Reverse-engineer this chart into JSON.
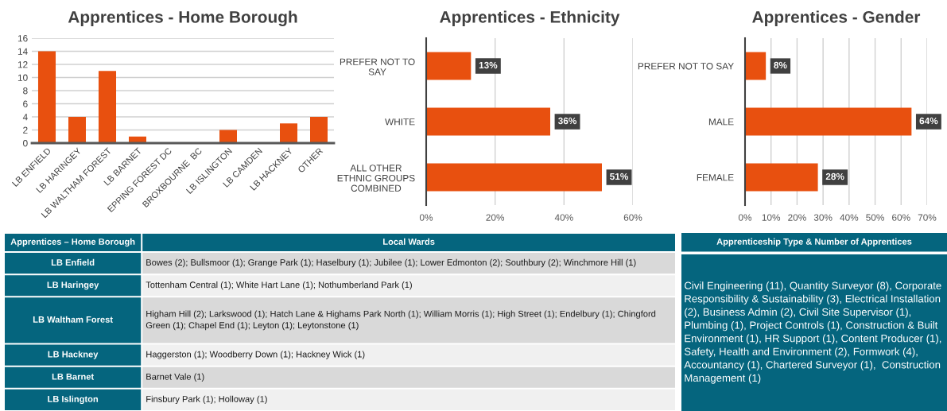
{
  "chart_data": [
    {
      "type": "bar",
      "title": "Apprentices - Home Borough",
      "categories": [
        "LB ENFIELD",
        "LB HARINGEY",
        "LB WALTHAM FOREST",
        "LB BARNET",
        "EPPING FOREST DC",
        "BROXBOURNE  BC",
        "LB ISLINGTON",
        "LB CAMDEN",
        "LB HACKNEY",
        "OTHER"
      ],
      "series": [
        {
          "color": "#e8500f",
          "values": [
            14,
            4,
            11,
            1,
            0,
            0,
            2,
            0,
            3,
            4
          ]
        }
      ],
      "ylim": [
        0,
        16
      ],
      "yticks": [
        0,
        2,
        4,
        6,
        8,
        10,
        12,
        14,
        16
      ],
      "grid": "y"
    },
    {
      "type": "bar",
      "orientation": "horizontal",
      "title": "Apprentices - Ethnicity",
      "categories": [
        "PREFER NOT TO\nSAY",
        "WHITE",
        "ALL OTHER\nETHNIC GROUPS\nCOMBINED"
      ],
      "series": [
        {
          "color": "#e8500f",
          "values": [
            13,
            36,
            51
          ]
        }
      ],
      "value_labels": [
        "13%",
        "36%",
        "51%"
      ],
      "xlim": [
        0,
        60
      ],
      "xticks": [
        {
          "value": 0,
          "label": "0%"
        },
        {
          "value": 20,
          "label": "20%"
        },
        {
          "value": 40,
          "label": "40%"
        },
        {
          "value": 60,
          "label": "60%"
        }
      ],
      "grid": "x"
    },
    {
      "type": "bar",
      "orientation": "horizontal",
      "title": "Apprentices - Gender",
      "categories": [
        "PREFER NOT TO SAY",
        "MALE",
        "FEMALE"
      ],
      "series": [
        {
          "color": "#e8500f",
          "values": [
            8,
            64,
            28
          ]
        }
      ],
      "value_labels": [
        "8%",
        "64%",
        "28%"
      ],
      "xlim": [
        0,
        70
      ],
      "xticks": [
        {
          "value": 0,
          "label": "0%"
        },
        {
          "value": 10,
          "label": "10%"
        },
        {
          "value": 20,
          "label": "20%"
        },
        {
          "value": 30,
          "label": "30%"
        },
        {
          "value": 40,
          "label": "40%"
        },
        {
          "value": 50,
          "label": "50%"
        },
        {
          "value": 60,
          "label": "60%"
        },
        {
          "value": 70,
          "label": "70%"
        }
      ],
      "grid": "x"
    },
    {
      "type": "other",
      "categories": [
        "Apprentices – Home Borough",
        "Local Wards"
      ],
      "annotations": [
        "LB Enfield",
        "Bowes (2); Bullsmoor (1); Grange Park (1); Haselbury (1); Jubilee (1); Lower Edmonton (2); Southbury (2); Winchmore Hill (1)",
        "LB Haringey",
        "Tottenham Central (1); White Hart Lane (1); Nothumberland Park (1)",
        "LB Waltham Forest",
        "Higham Hill (2); Larkswood (1); Hatch Lane & Highams Park North (1); William Morris (1); High Street (1); Endelbury (1); Chingford\nGreen (1); Chapel End (1); Leyton (1); Leytonstone (1)",
        "LB Hackney",
        "Haggerston (1); Woodberry Down (1); Hackney Wick (1)",
        "LB Barnet",
        "Barnet Vale (1)",
        "LB Islington",
        "Finsbury Park (1); Holloway (1)"
      ]
    },
    {
      "type": "other",
      "title": "Apprenticeship Type & Number of Apprentices",
      "annotations": [
        "Civil Engineering (11), Quantity Surveyor (8), Corporate\nResponsibility & Sustainability (3), Electrical Installation\n(2), Business Admin (2), Civil Site Supervisor (1),\nPlumbing (1), Project Controls (1), Construction & Built\nEnvironment (1), HR Support (1), Content Producer (1),\nSafety, Health and Environment (2), Formwork (4),\nAccountancy (1), Chartered Surveyor (1),  Construction\nManagement (1)"
      ]
    }
  ]
}
